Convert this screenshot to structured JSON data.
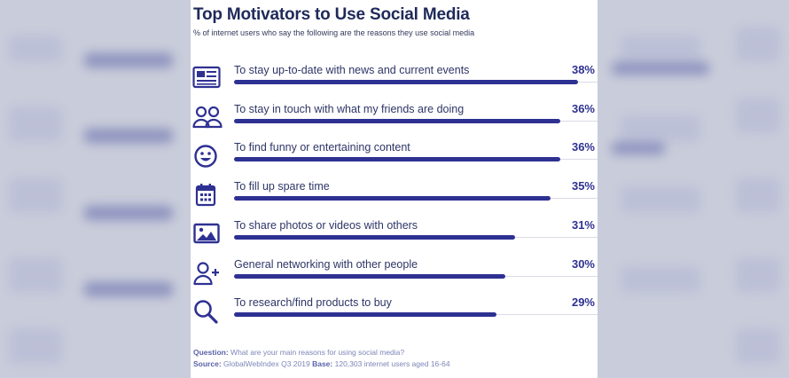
{
  "title": "Top Motivators to Use Social Media",
  "subtitle": "% of internet users who say the following are the reasons they use social media",
  "colors": {
    "bar": "#2e3192",
    "text": "#2d3566",
    "title": "#1f2a5a",
    "footer": "#7d86b8"
  },
  "chart_data": {
    "type": "bar",
    "orientation": "horizontal",
    "title": "Top Motivators to Use Social Media",
    "subtitle": "% of internet users who say the following are the reasons they use social media",
    "categories": [
      "To stay up-to-date with news and current events",
      "To stay in touch with what my friends are doing",
      "To find funny or entertaining content",
      "To fill up spare time",
      "To share photos or videos with others",
      "General networking with other people",
      "To research/find products to buy"
    ],
    "values": [
      38,
      36,
      36,
      35,
      31,
      30,
      29
    ],
    "labels": [
      "38%",
      "36%",
      "36%",
      "35%",
      "31%",
      "30%",
      "29%"
    ],
    "icons": [
      "newspaper-icon",
      "people-icon",
      "smiley-icon",
      "calendar-icon",
      "image-icon",
      "add-user-icon",
      "magnifier-icon"
    ],
    "unit": "%",
    "xlim": [
      0,
      40
    ],
    "grid": false,
    "legend": "none"
  },
  "footer": {
    "question_label": "Question:",
    "question_text": "What are your main reasons for using social media?",
    "source_label": "Source:",
    "source_text": "GlobalWebIndex Q3 2019",
    "base_label": "Base:",
    "base_text": "120,303 internet users aged 16-64"
  }
}
